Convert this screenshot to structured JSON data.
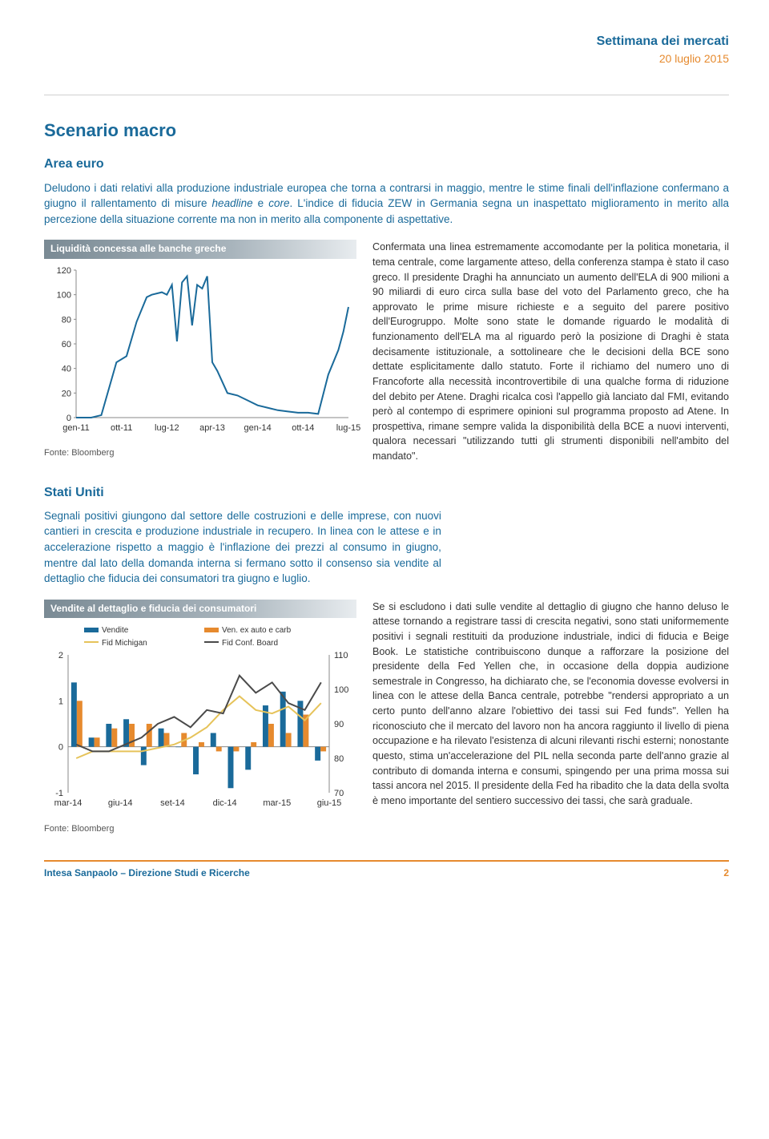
{
  "header": {
    "title": "Settimana dei mercati",
    "date": "20 luglio 2015"
  },
  "section1": {
    "heading": "Scenario macro",
    "subheading": "Area euro",
    "intro_html": "Deludono i dati relativi alla produzione industriale europea che torna a contrarsi in maggio, mentre le stime finali dell'inflazione confermano a giugno il rallentamento di misure <em>headline</em> e <em>core</em>. L'indice di fiducia ZEW in Germania segna un inaspettato miglioramento in merito alla percezione della situazione corrente ma non in merito alla componente di aspettative.",
    "chart": {
      "title": "Liquidità concessa alle banche greche",
      "source": "Fonte: Bloomberg",
      "type": "line",
      "ylim": [
        0,
        120
      ],
      "yticks": [
        0,
        20,
        40,
        60,
        80,
        100,
        120
      ],
      "xtick_labels": [
        "gen-11",
        "ott-11",
        "lug-12",
        "apr-13",
        "gen-14",
        "ott-14",
        "lug-15"
      ],
      "line_color": "#1a6a9a",
      "line_width": 2,
      "axis_color": "#888888",
      "tick_font_size": 11,
      "background": "#ffffff",
      "series": [
        [
          0,
          0
        ],
        [
          3,
          0
        ],
        [
          5,
          2
        ],
        [
          8,
          45
        ],
        [
          10,
          50
        ],
        [
          12,
          78
        ],
        [
          14,
          98
        ],
        [
          15,
          100
        ],
        [
          17,
          102
        ],
        [
          18,
          100
        ],
        [
          19,
          108
        ],
        [
          20,
          62
        ],
        [
          21,
          110
        ],
        [
          22,
          115
        ],
        [
          23,
          75
        ],
        [
          24,
          108
        ],
        [
          25,
          105
        ],
        [
          26,
          115
        ],
        [
          27,
          45
        ],
        [
          28,
          38
        ],
        [
          30,
          20
        ],
        [
          32,
          18
        ],
        [
          34,
          14
        ],
        [
          36,
          10
        ],
        [
          38,
          8
        ],
        [
          40,
          6
        ],
        [
          42,
          5
        ],
        [
          44,
          4
        ],
        [
          46,
          4
        ],
        [
          48,
          3
        ],
        [
          50,
          35
        ],
        [
          52,
          55
        ],
        [
          53,
          70
        ],
        [
          54,
          90
        ]
      ],
      "x_max": 54
    },
    "body": "Confermata una linea estremamente accomodante per la politica monetaria, il tema centrale, come largamente atteso, della conferenza stampa è stato il caso greco. Il presidente Draghi ha annunciato un aumento dell'ELA di 900 milioni a 90 miliardi di euro circa sulla base del voto del Parlamento greco, che ha approvato le prime misure richieste e a seguito del parere positivo dell'Eurogruppo. Molte sono state le domande riguardo le modalità di funzionamento dell'ELA ma al riguardo però la posizione di Draghi è stata decisamente istituzionale, a sottolineare che le decisioni della BCE sono dettate esplicitamente dallo statuto. Forte il richiamo del numero uno di Francoforte alla necessità incontrovertibile di una qualche forma di riduzione del debito per Atene. Draghi ricalca così l'appello già lanciato dal FMI, evitando però al contempo di esprimere opinioni sul programma proposto ad Atene. In prospettiva, rimane sempre valida la disponibilità della BCE a nuovi interventi, qualora necessari \"utilizzando tutti gli strumenti disponibili nell'ambito del mandato\"."
  },
  "section2": {
    "subheading": "Stati Uniti",
    "intro": "Segnali positivi giungono dal settore delle costruzioni e delle imprese, con nuovi cantieri in crescita e produzione industriale in recupero. In linea con le attese e in accelerazione rispetto a maggio è l'inflazione dei prezzi al consumo in giugno, mentre dal lato della domanda interna si fermano sotto il consenso sia vendite al dettaglio che fiducia dei consumatori tra giugno e luglio.",
    "chart": {
      "title": "Vendite al dettaglio e fiducia dei consumatori",
      "source": "Fonte: Bloomberg",
      "type": "combo",
      "legend": {
        "vendite": {
          "label": "Vendite",
          "color": "#1a6a9a",
          "type": "bar"
        },
        "ven_ex": {
          "label": "Ven. ex auto e carb",
          "color": "#e68a2e",
          "type": "bar"
        },
        "fid_mich": {
          "label": "Fid Michigan",
          "color": "#e6c35a",
          "type": "line"
        },
        "fid_conf": {
          "label": "Fid Conf. Board",
          "color": "#4a4a4a",
          "type": "line"
        }
      },
      "y1_lim": [
        -1,
        2
      ],
      "y1_ticks": [
        -1,
        0,
        1,
        2
      ],
      "y2_lim": [
        70,
        110
      ],
      "y2_ticks": [
        70,
        80,
        90,
        100,
        110
      ],
      "xtick_labels": [
        "mar-14",
        "giu-14",
        "set-14",
        "dic-14",
        "mar-15",
        "giu-15"
      ],
      "bar_color_1": "#1a6a9a",
      "bar_color_2": "#e68a2e",
      "line_color_1": "#e6c35a",
      "line_color_2": "#4a4a4a",
      "axis_color": "#888888",
      "tick_font_size": 11,
      "bars": {
        "vendite": [
          1.4,
          0.2,
          0.5,
          0.6,
          -0.4,
          0.4,
          0.0,
          -0.6,
          0.3,
          -0.9,
          -0.5,
          0.9,
          1.2,
          1.0,
          -0.3
        ],
        "ven_ex": [
          1.0,
          0.2,
          0.4,
          0.5,
          0.5,
          0.3,
          0.3,
          0.1,
          -0.1,
          -0.1,
          0.1,
          0.5,
          0.3,
          0.7,
          -0.1
        ]
      },
      "lines": {
        "fid_mich": [
          80,
          82,
          82,
          82,
          82,
          83,
          84,
          86,
          89,
          94,
          98,
          94,
          93,
          95,
          91,
          96
        ],
        "fid_conf": [
          84,
          82,
          82,
          84,
          86,
          90,
          92,
          89,
          94,
          93,
          104,
          99,
          102,
          96,
          94,
          102
        ]
      }
    },
    "body": "Se si escludono i dati sulle vendite al dettaglio di giugno che hanno deluso le attese tornando a registrare tassi di crescita negativi, sono stati uniformemente positivi i segnali restituiti da produzione industriale, indici di fiducia e Beige Book. Le statistiche contribuiscono dunque a rafforzare la posizione del presidente della Fed Yellen che, in occasione della doppia audizione semestrale in Congresso, ha dichiarato che, se l'economia dovesse evolversi in linea con le attese della Banca centrale, potrebbe \"rendersi appropriato a un certo punto dell'anno alzare l'obiettivo dei tassi sui Fed funds\". Yellen ha riconosciuto che il mercato del lavoro non ha ancora raggiunto il livello di piena occupazione e ha rilevato l'esistenza di alcuni rilevanti rischi esterni; nonostante questo, stima un'accelerazione del PIL nella seconda parte dell'anno grazie al contributo di domanda interna e consumi, spingendo per una prima mossa sui tassi ancora nel 2015. Il presidente della Fed ha ribadito che la data della svolta è meno importante del sentiero successivo dei tassi, che sarà graduale."
  },
  "footer": {
    "left": "Intesa Sanpaolo – Direzione Studi e Ricerche",
    "page": "2"
  }
}
